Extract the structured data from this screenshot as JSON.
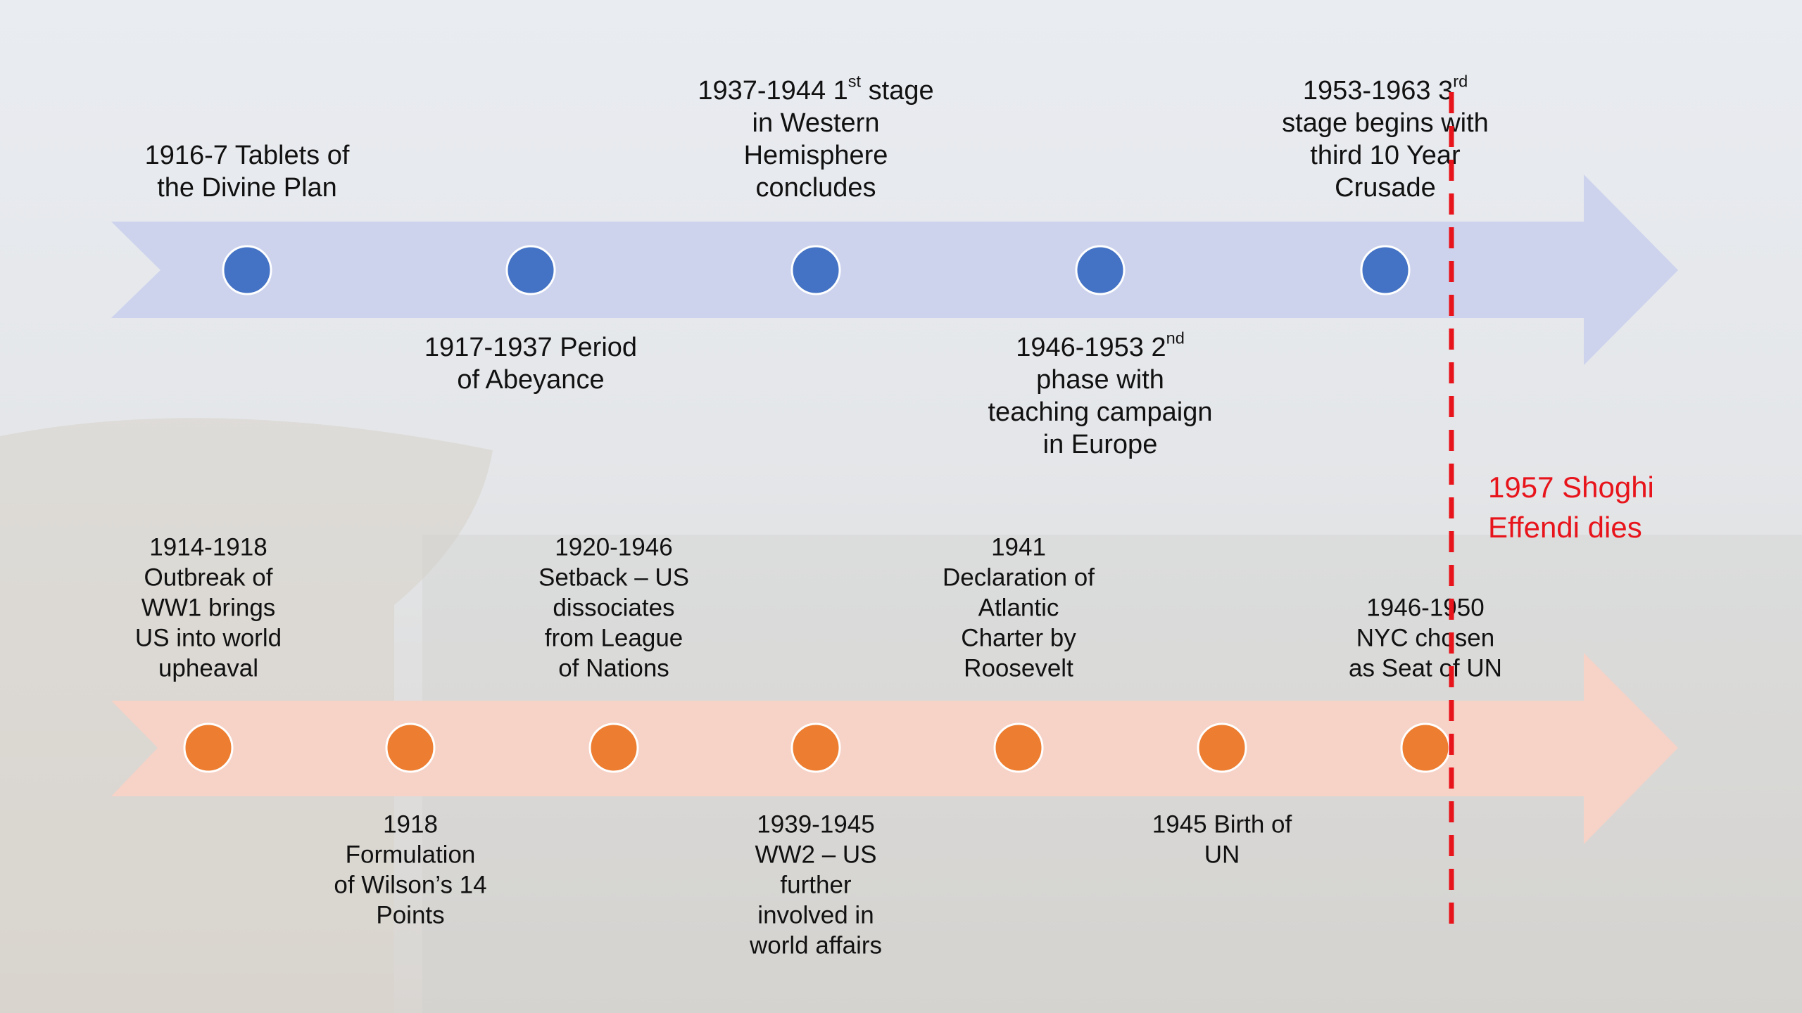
{
  "top_timeline": {
    "events": [
      {
        "position": "above",
        "lines": [
          "1916-7 Tablets of",
          "the Divine Plan"
        ]
      },
      {
        "position": "below",
        "lines": [
          "1917-1937 Period",
          "of Abeyance"
        ]
      },
      {
        "position": "above",
        "lines": [
          {
            "text": "1937-1944 1",
            "sup": "st",
            "after": " stage"
          },
          "in Western",
          "Hemisphere",
          "concludes"
        ]
      },
      {
        "position": "below",
        "lines": [
          {
            "text": "1946-1953 2",
            "sup": "nd",
            "after": ""
          },
          "phase with",
          "teaching campaign",
          "in Europe"
        ]
      },
      {
        "position": "above",
        "lines": [
          {
            "text": "1953-1963 3",
            "sup": "rd",
            "after": ""
          },
          "stage begins with",
          "third 10 Year",
          "Crusade"
        ]
      }
    ]
  },
  "bottom_timeline": {
    "events": [
      {
        "position": "above",
        "lines": [
          "1914-1918",
          "Outbreak of",
          "WW1 brings",
          "US into world",
          "upheaval"
        ]
      },
      {
        "position": "below",
        "lines": [
          "1918",
          "Formulation",
          "of Wilson’s 14",
          "Points"
        ]
      },
      {
        "position": "above",
        "lines": [
          "1920-1946",
          "Setback – US",
          "dissociates",
          "from League",
          "of Nations"
        ]
      },
      {
        "position": "below",
        "lines": [
          "1939-1945",
          "WW2 – US",
          "further",
          "involved in",
          "world affairs"
        ]
      },
      {
        "position": "above",
        "lines": [
          "1941",
          "Declaration of",
          "Atlantic",
          "Charter by",
          "Roosevelt"
        ]
      },
      {
        "position": "below",
        "lines": [
          "1945 Birth of",
          "UN"
        ]
      },
      {
        "position": "above",
        "lines": [
          "1946-1950",
          "NYC chosen",
          "as Seat of UN"
        ]
      }
    ]
  },
  "marker": {
    "lines": [
      "1957 Shoghi",
      "Effendi dies"
    ],
    "color": "#e8141b"
  }
}
